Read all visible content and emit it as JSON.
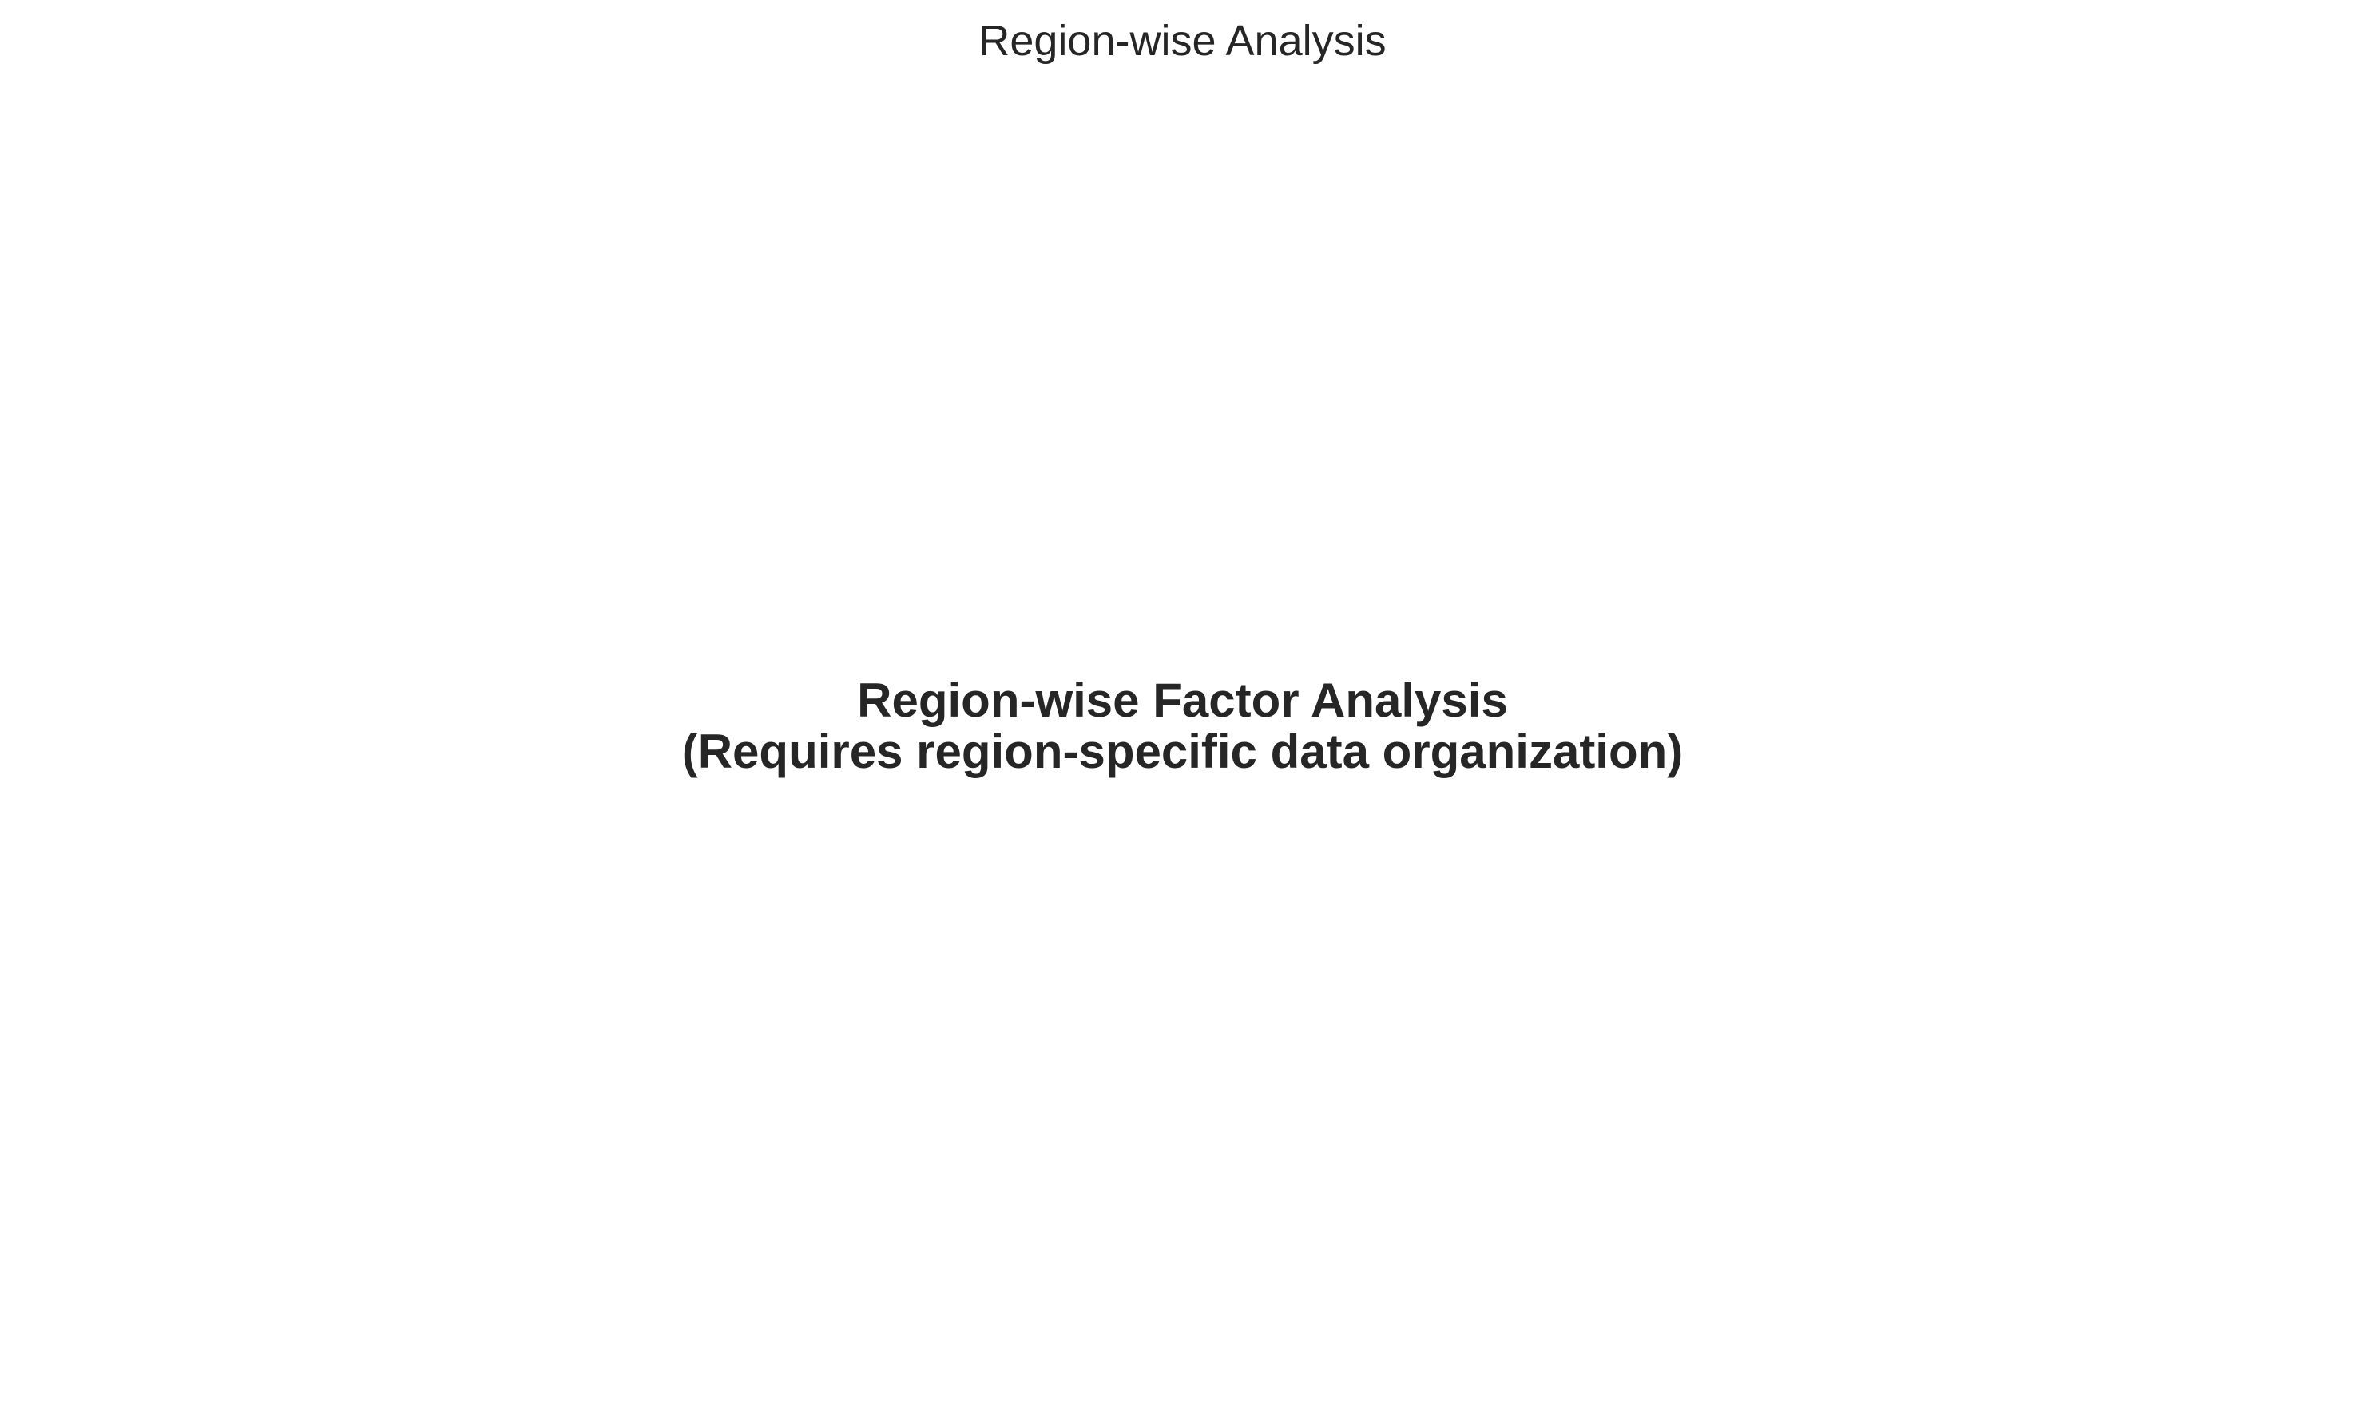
{
  "chart_data": {
    "type": "bar",
    "title": "Region-wise Analysis",
    "annotations": [
      "Region-wise Factor Analysis",
      "(Requires region-specific data organization)"
    ],
    "categories": [],
    "values": [],
    "grid": false,
    "text_color": "#262626",
    "background": "#ffffff"
  }
}
